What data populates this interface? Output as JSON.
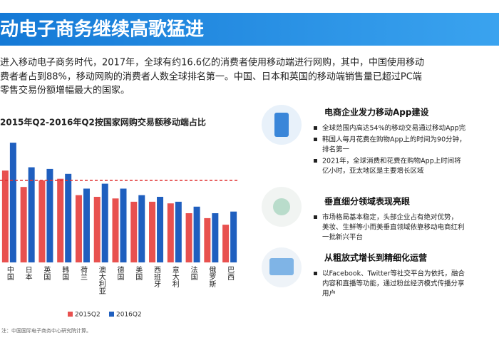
{
  "header": {
    "title": "动电子商务继续高歌猛进"
  },
  "intro": [
    "进入移动电子商务时代，2017年，全球有约16.6亿的消费者使用移动端进行网购，其中，中国使用移动",
    "费者者占到88%，移动网购的消费者人数全球排名第一。中国、日本和英国的移动端销售量已超过PC端",
    "零售交易份额增幅最大的国家。"
  ],
  "chart_data": {
    "type": "bar",
    "title": "2015年Q2-2016年Q2按国家网购交易额移动端占比",
    "categories": [
      "中国",
      "日本",
      "英国",
      "韩国",
      "荷兰",
      "澳大利亚",
      "德国",
      "美国",
      "西班牙",
      "意大利",
      "法国",
      "俄罗斯",
      "巴西"
    ],
    "series": [
      {
        "name": "2015Q2",
        "color": "#e8514f",
        "values": [
          56,
          46,
          50,
          51,
          41,
          40,
          39,
          37,
          37,
          36,
          30,
          27,
          23
        ]
      },
      {
        "name": "2016Q2",
        "color": "#1f5fbf",
        "values": [
          73,
          58,
          57,
          54,
          45,
          48,
          45,
          41,
          40,
          37,
          34,
          30,
          31
        ]
      }
    ],
    "ylim": [
      0,
      80
    ],
    "reference_line": 50,
    "legend": "bottom"
  },
  "source": "注：中国国际电子商务中心研究院计算。",
  "sections": [
    {
      "title": "电商企业发力移动App建设",
      "bullets": [
        [
          "全球范围内高达54%的移动交易通过移动App完"
        ],
        [
          "韩国人每月花费在购物App上的时间为90分钟，",
          "排名第一"
        ],
        [
          "2021年，全球消费和花费在购物App上时间将",
          "亿小时，亚太地区是主要增长区域"
        ]
      ]
    },
    {
      "title": "垂直细分领域表现亮眼",
      "bullets": [
        [
          "市场格局基本稳定，头部企业占有绝对优势，",
          "美妆、生鲜等小而美垂直领域依靠移动电商红利",
          "一批新兴平台"
        ]
      ]
    },
    {
      "title": "从粗放式增长到精细化运营",
      "bullets": [
        [
          "以Facebook、Twitter等社交平台为依托，融合",
          "内容和直播等功能，通过粉丝经济模式传播分享",
          "用户"
        ]
      ]
    }
  ]
}
